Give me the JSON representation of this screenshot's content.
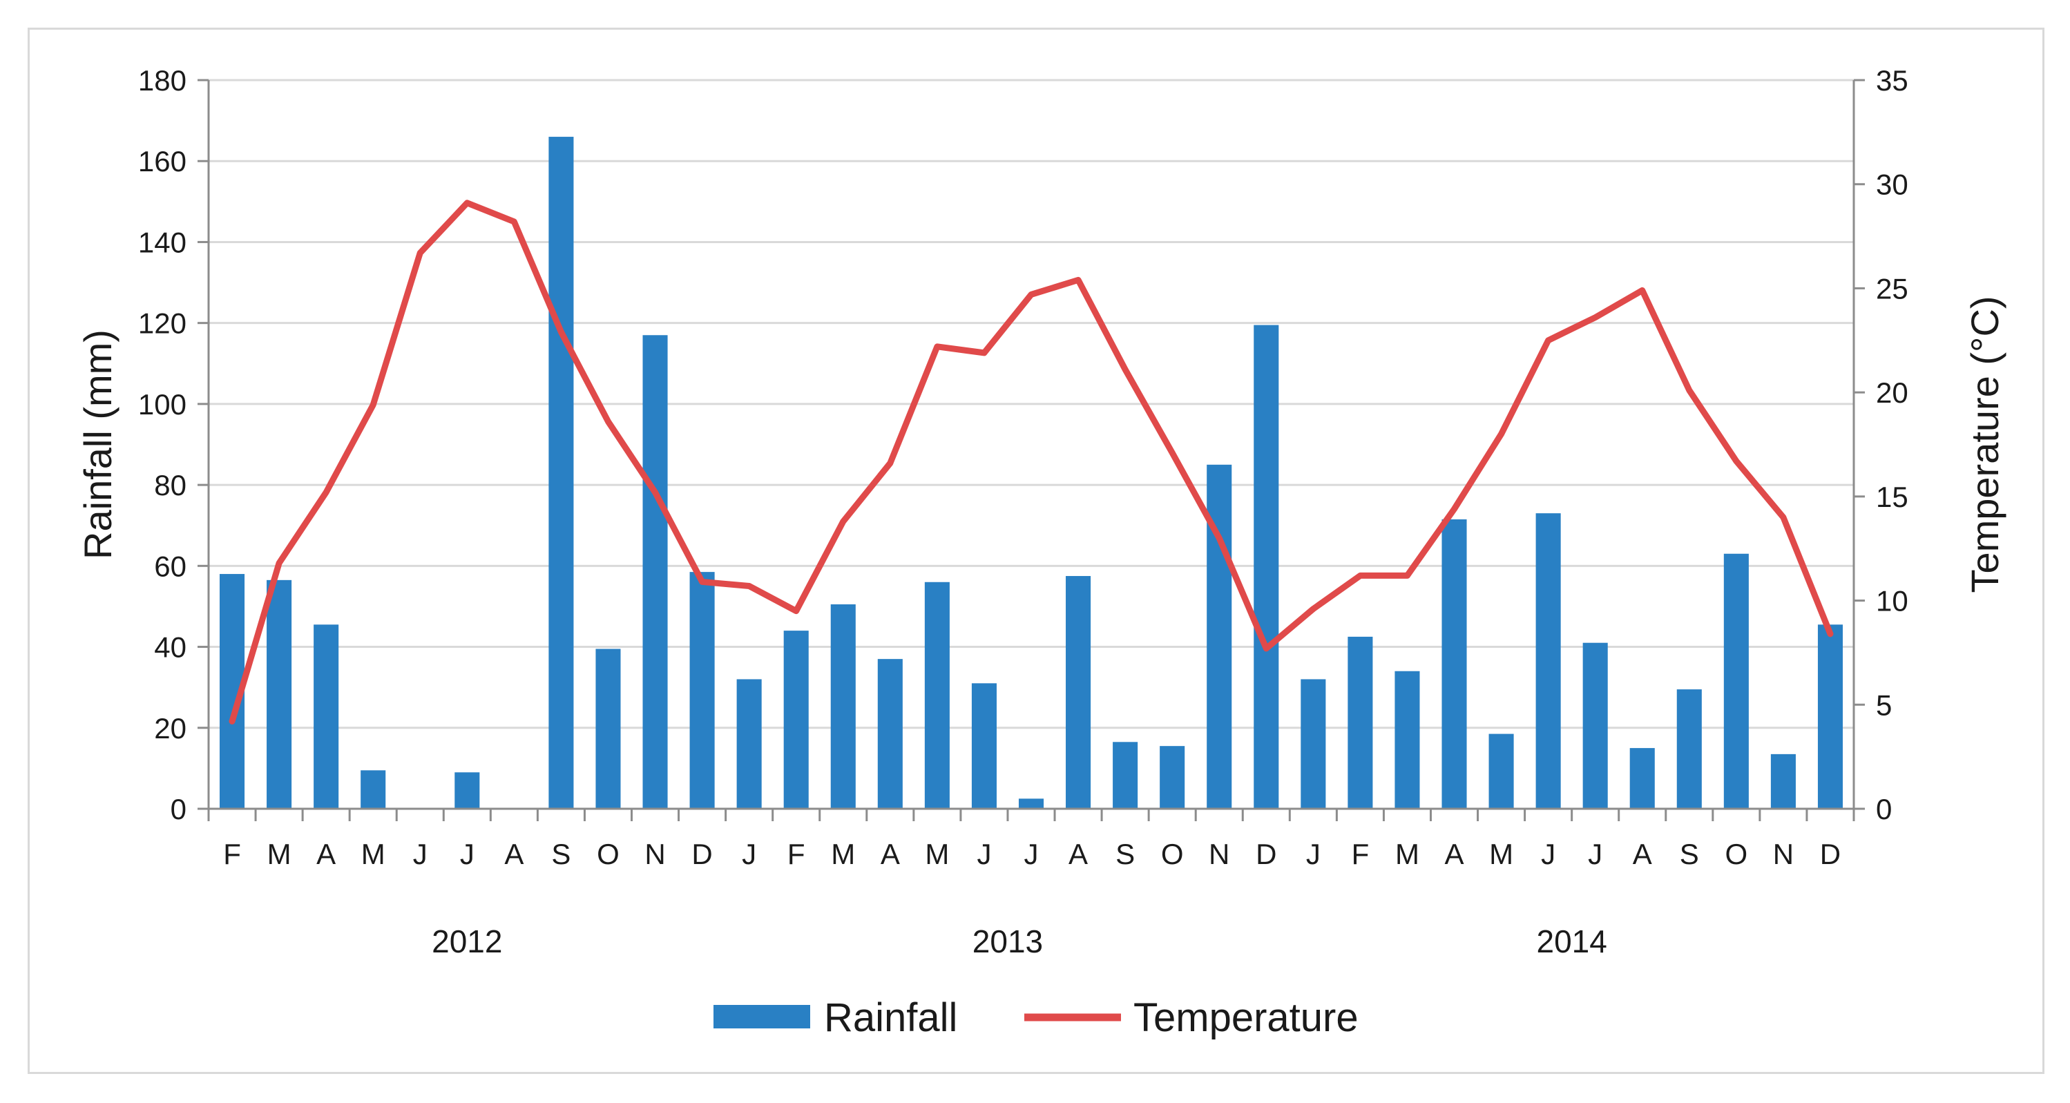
{
  "chart_data": {
    "type": "bar+line",
    "title": "",
    "categories": [
      "F",
      "M",
      "A",
      "M",
      "J",
      "J",
      "A",
      "S",
      "O",
      "N",
      "D",
      "J",
      "F",
      "M",
      "A",
      "M",
      "J",
      "J",
      "A",
      "S",
      "O",
      "N",
      "D",
      "J",
      "F",
      "M",
      "A",
      "M",
      "J",
      "J",
      "A",
      "S",
      "O",
      "N",
      "D"
    ],
    "year_groups": [
      {
        "label": "2012",
        "start": 0,
        "end": 10
      },
      {
        "label": "2013",
        "start": 11,
        "end": 22
      },
      {
        "label": "2014",
        "start": 23,
        "end": 34
      }
    ],
    "series": [
      {
        "name": "Rainfall",
        "kind": "bar",
        "axis": "left",
        "color": "#2980c4",
        "values": [
          58,
          56.5,
          45.5,
          9.5,
          0,
          9,
          0,
          166,
          39.5,
          117,
          58.5,
          32,
          44,
          50.5,
          37,
          56,
          31,
          2.5,
          57.5,
          16.5,
          15.5,
          85,
          119.5,
          32,
          42.5,
          34,
          71.5,
          18.5,
          73,
          41,
          15,
          29.5,
          63,
          13.5,
          45.5
        ]
      },
      {
        "name": "Temperature",
        "kind": "line",
        "axis": "right",
        "color": "#e04a4a",
        "values": [
          4.2,
          11.8,
          15.2,
          19.4,
          26.7,
          29.1,
          28.2,
          22.9,
          18.6,
          15.2,
          10.9,
          10.7,
          9.5,
          13.8,
          16.6,
          22.2,
          21.9,
          24.7,
          25.4,
          21.1,
          17.1,
          13,
          7.7,
          9.6,
          11.2,
          11.2,
          14.4,
          18,
          22.5,
          23.6,
          24.9,
          20.1,
          16.7,
          14,
          8.4
        ]
      }
    ],
    "y_left": {
      "label": "Rainfall (mm)",
      "min": 0,
      "max": 180,
      "step": 20,
      "ticks": [
        "0",
        "20",
        "40",
        "60",
        "80",
        "100",
        "120",
        "140",
        "160",
        "180"
      ]
    },
    "y_right": {
      "label": "Temperature  (°C)",
      "min": 0,
      "max": 35,
      "step": 5,
      "ticks": [
        "0",
        "5",
        "10",
        "15",
        "20",
        "25",
        "30",
        "35"
      ]
    },
    "grid": true,
    "legend": {
      "position": "bottom-center",
      "items": [
        "Rainfall",
        "Temperature"
      ]
    }
  }
}
